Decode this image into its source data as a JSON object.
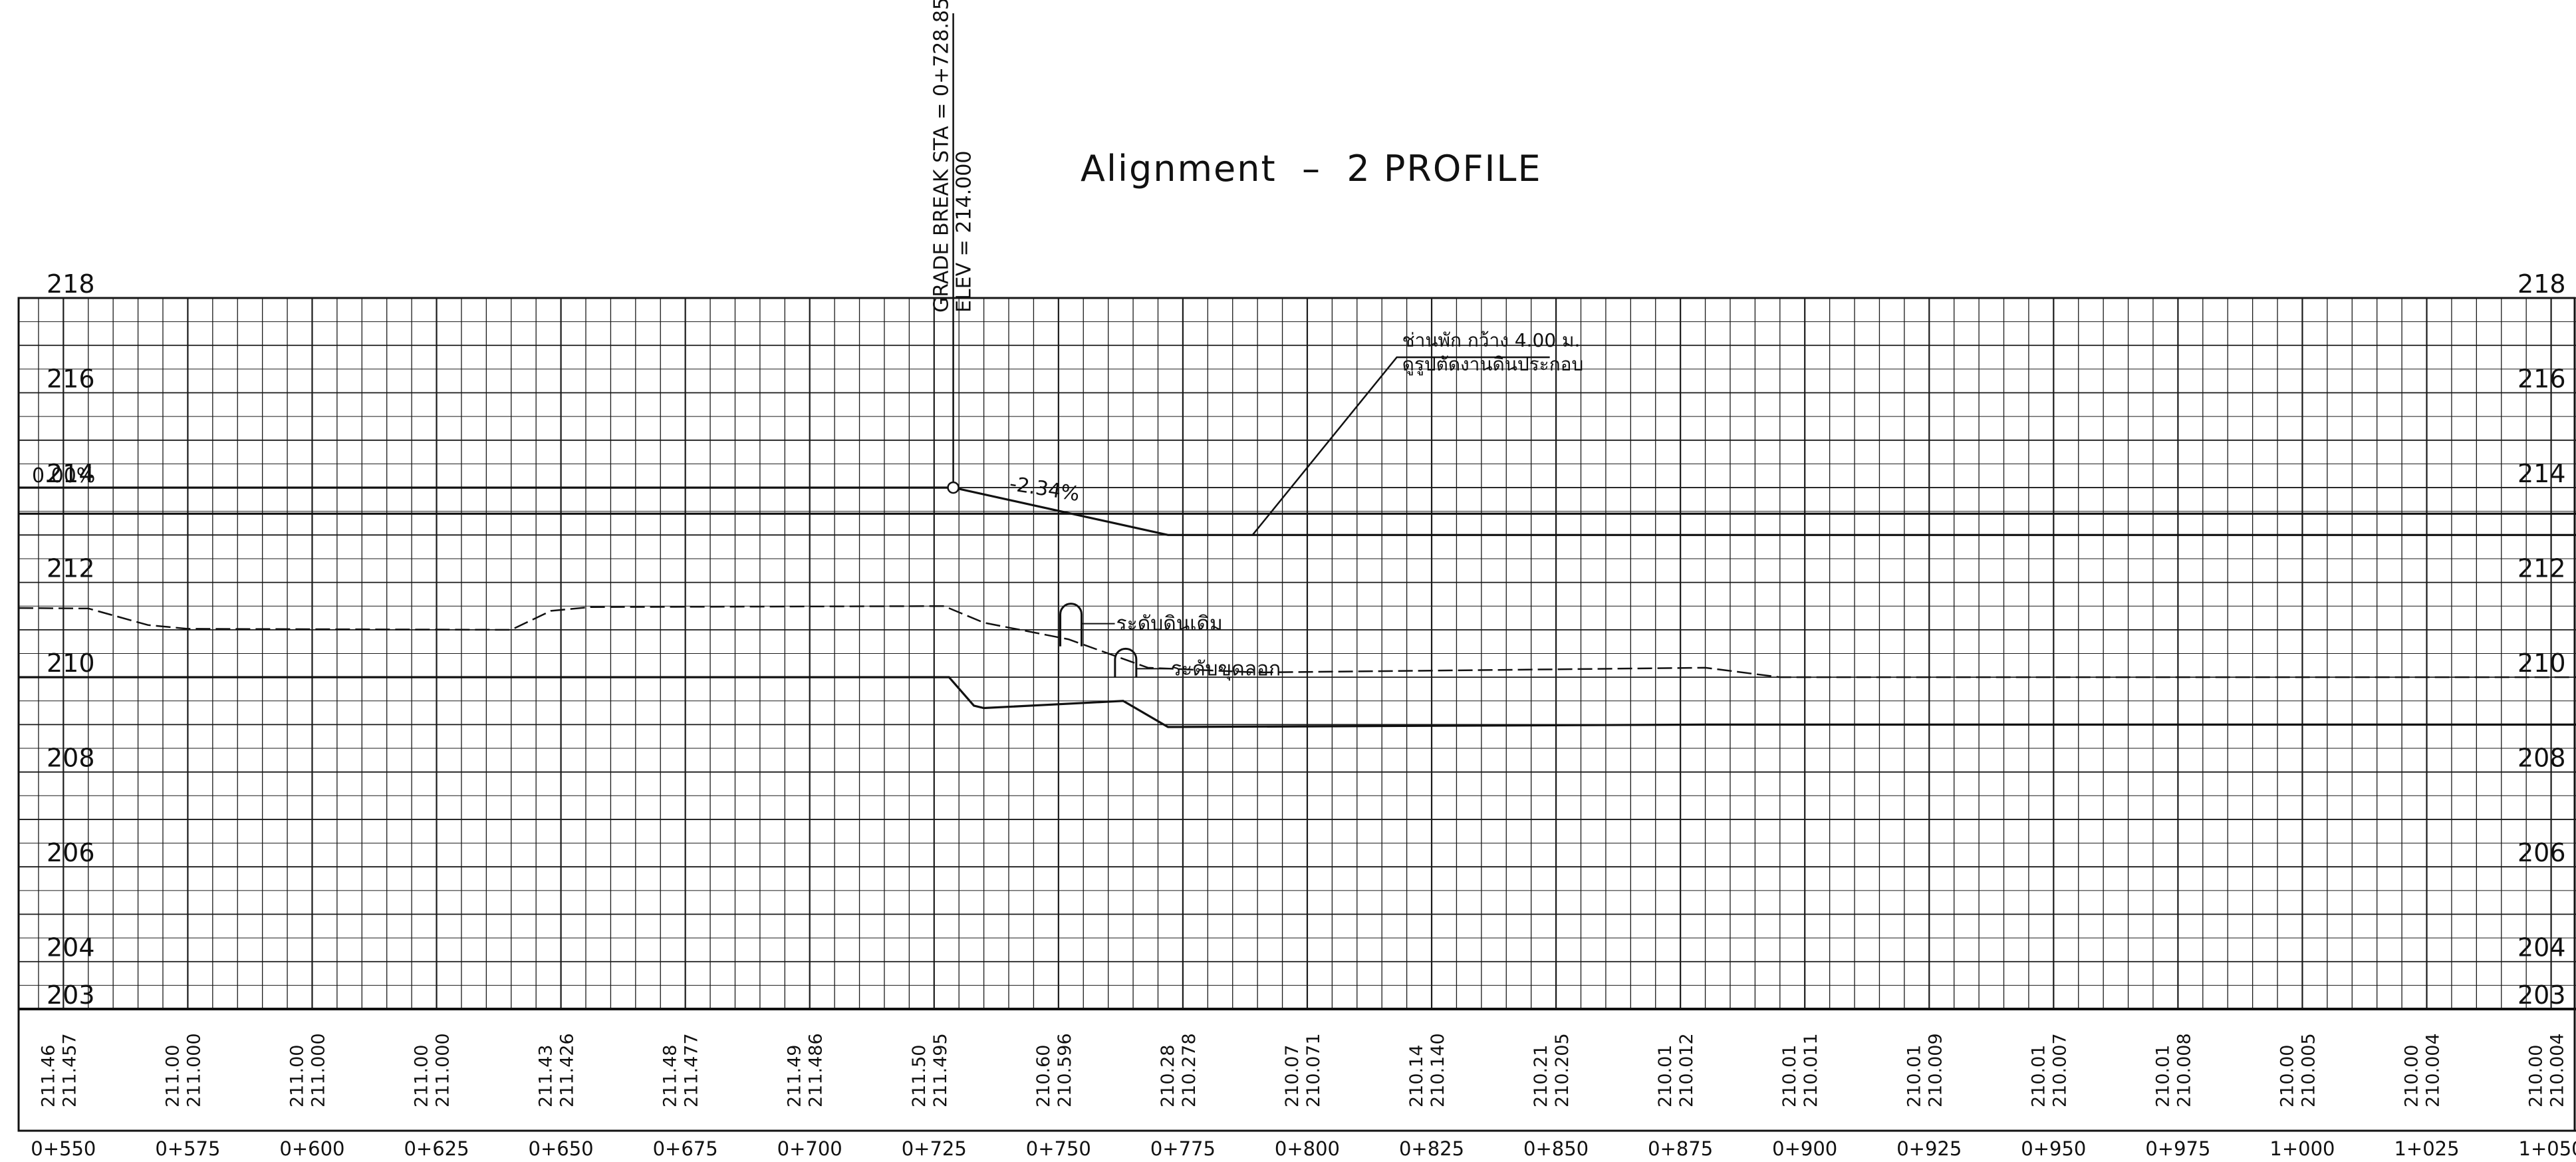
{
  "title": "Alignment  –  2 PROFILE",
  "grade_break": {
    "sta_text": "GRADE BREAK STA = 0+728.85",
    "elev_text": "ELEV =  214.000",
    "station": 728.85,
    "elevation": 214.0
  },
  "slope_label": "-2.34%",
  "left_stub": "0.00%",
  "annotations": {
    "shoulder": "ช่านพัก กว้าง 4.00 ม.",
    "shoulder_detail": "ดูรูปตัดงานดินประกอบ",
    "existing_ground": "ระดับดินเดิม",
    "excavation": "ระดับขุดลอก"
  },
  "colors": {
    "ink": "#111111",
    "grid": "#1a1a1a"
  },
  "chart_data": {
    "type": "line",
    "xlim": [
      541,
      1055
    ],
    "ylim": [
      203,
      218
    ],
    "y_ticks_left": [
      "218",
      "216",
      "214",
      "212",
      "210",
      "208",
      "206",
      "204",
      "203"
    ],
    "y_ticks_right": [
      "218",
      "216",
      "214",
      "212",
      "210",
      "208",
      "206",
      "204",
      "203"
    ],
    "y_tick_values": [
      218,
      216,
      214,
      212,
      210,
      208,
      206,
      204,
      203
    ],
    "stations": [
      "0+550",
      "0+575",
      "0+600",
      "0+625",
      "0+650",
      "0+675",
      "0+700",
      "0+725",
      "0+750",
      "0+775",
      "0+800",
      "0+825",
      "0+850",
      "0+875",
      "0+900",
      "0+925",
      "0+950",
      "0+975",
      "1+000",
      "1+025",
      "1+050"
    ],
    "station_values": [
      550,
      575,
      600,
      625,
      650,
      675,
      700,
      725,
      750,
      775,
      800,
      825,
      850,
      875,
      900,
      925,
      950,
      975,
      1000,
      1025,
      1050
    ],
    "existing_elev": [
      "211.46",
      "211.00",
      "211.00",
      "211.00",
      "211.43",
      "211.48",
      "211.49",
      "211.50",
      "210.60",
      "210.28",
      "210.07",
      "210.14",
      "210.21",
      "210.01",
      "210.01",
      "210.01",
      "210.01",
      "210.01",
      "210.00",
      "210.00",
      "210.00"
    ],
    "design_elev": [
      "211.457",
      "211.000",
      "211.000",
      "211.000",
      "211.426",
      "211.477",
      "211.486",
      "211.495",
      "210.596",
      "210.278",
      "210.071",
      "210.140",
      "210.205",
      "210.012",
      "210.011",
      "210.009",
      "210.007",
      "210.008",
      "210.005",
      "210.004",
      "210.004"
    ],
    "series": [
      {
        "style": "solid",
        "points": [
          [
            541,
            214.0
          ],
          [
            728.85,
            214.0
          ],
          [
            772,
            213.0
          ],
          [
            1055,
            213.0
          ]
        ]
      },
      {
        "style": "solid",
        "points": [
          [
            541,
            213.45
          ],
          [
            1055,
            213.45
          ]
        ]
      },
      {
        "style": "dashed",
        "points": [
          [
            541,
            211.46
          ],
          [
            555,
            211.45
          ],
          [
            567,
            211.1
          ],
          [
            575,
            211.02
          ],
          [
            640,
            211.0
          ],
          [
            648,
            211.4
          ],
          [
            656,
            211.48
          ],
          [
            727,
            211.5
          ],
          [
            735,
            211.15
          ],
          [
            752,
            210.8
          ],
          [
            768,
            210.2
          ],
          [
            790,
            210.1
          ],
          [
            880,
            210.2
          ],
          [
            895,
            210.0
          ],
          [
            1055,
            210.0
          ]
        ]
      },
      {
        "style": "solid",
        "points": [
          [
            541,
            210.0
          ],
          [
            728,
            210.0
          ],
          [
            733,
            209.4
          ],
          [
            735,
            209.35
          ],
          [
            763,
            209.5
          ],
          [
            772,
            208.95
          ],
          [
            880,
            209.0
          ],
          [
            1055,
            209.0
          ]
        ]
      }
    ],
    "markers": [
      {
        "shape": "open-loop",
        "x": 752.5,
        "y_top": 211.55,
        "y_bottom": 210.65
      },
      {
        "shape": "open-loop",
        "x": 763.5,
        "y_top": 210.6,
        "y_bottom": 210.0
      }
    ]
  }
}
